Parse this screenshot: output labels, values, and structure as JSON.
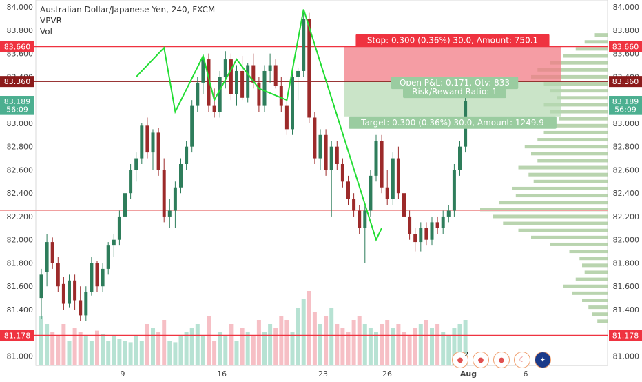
{
  "legend": {
    "symbol_title": "Australian Dollar/Japanese Yen, 240, FXCM",
    "indicator_1": "VPVR",
    "indicator_2": "Vol"
  },
  "chart_data": {
    "type": "candlestick",
    "title": "Australian Dollar/Japanese Yen, 240, FXCM",
    "ylim": [
      80.92,
      84.06
    ],
    "yticks": [
      "84.000",
      "83.800",
      "83.600",
      "83.400",
      "83.200",
      "83.000",
      "82.800",
      "82.600",
      "82.400",
      "82.200",
      "82.000",
      "81.800",
      "81.600",
      "81.400",
      "81.200",
      "81.000"
    ],
    "xticks": [
      "9",
      "16",
      "23",
      "26",
      "Aug",
      "6"
    ],
    "badges": [
      {
        "label": "83.660",
        "value": 83.66,
        "color": "#ef3340"
      },
      {
        "label": "83.360",
        "value": 83.36,
        "color": "#8b1a1a"
      },
      {
        "label": "83.189",
        "value": 83.189,
        "color": "#4caf90"
      },
      {
        "label": "56:09",
        "value": 83.12,
        "color": "#4caf90"
      },
      {
        "label": "81.178",
        "value": 81.178,
        "color": "#ef3340"
      }
    ],
    "hlines": [
      {
        "value": 83.66,
        "color": "#ef3340"
      },
      {
        "value": 83.36,
        "color": "#8b1a1a"
      },
      {
        "value": 82.25,
        "color": "#f0a0a0"
      },
      {
        "value": 81.178,
        "color": "#ef3340"
      }
    ],
    "position": {
      "entry": 83.36,
      "stop": 83.66,
      "target": 83.06,
      "stop_text": "Stop: 0.300 (0.36%) 30.0, Amount: 750.1",
      "pnl_text": "Open P&L: 0.171, Qty: 833",
      "rr_text": "Risk/Reward Ratio: 1",
      "target_text": "Target: 0.300 (0.36%) 30.0, Amount: 1249.9"
    },
    "candles": [
      {
        "o": 81.5,
        "h": 81.75,
        "l": 81.32,
        "c": 81.7
      },
      {
        "o": 81.72,
        "h": 82.05,
        "l": 81.6,
        "c": 81.98
      },
      {
        "o": 81.98,
        "h": 82.02,
        "l": 81.75,
        "c": 81.8
      },
      {
        "o": 81.8,
        "h": 81.85,
        "l": 81.55,
        "c": 81.6
      },
      {
        "o": 81.62,
        "h": 81.68,
        "l": 81.4,
        "c": 81.45
      },
      {
        "o": 81.45,
        "h": 81.7,
        "l": 81.42,
        "c": 81.65
      },
      {
        "o": 81.65,
        "h": 81.7,
        "l": 81.4,
        "c": 81.48
      },
      {
        "o": 81.48,
        "h": 81.6,
        "l": 81.3,
        "c": 81.35
      },
      {
        "o": 81.35,
        "h": 81.6,
        "l": 81.3,
        "c": 81.55
      },
      {
        "o": 81.55,
        "h": 81.85,
        "l": 81.52,
        "c": 81.8
      },
      {
        "o": 81.8,
        "h": 81.82,
        "l": 81.55,
        "c": 81.6
      },
      {
        "o": 81.6,
        "h": 81.8,
        "l": 81.55,
        "c": 81.75
      },
      {
        "o": 81.75,
        "h": 81.98,
        "l": 81.7,
        "c": 81.95
      },
      {
        "o": 81.95,
        "h": 82.05,
        "l": 81.85,
        "c": 82.0
      },
      {
        "o": 82.0,
        "h": 82.25,
        "l": 81.95,
        "c": 82.2
      },
      {
        "o": 82.2,
        "h": 82.45,
        "l": 82.15,
        "c": 82.4
      },
      {
        "o": 82.4,
        "h": 82.65,
        "l": 82.35,
        "c": 82.6
      },
      {
        "o": 82.6,
        "h": 82.75,
        "l": 82.5,
        "c": 82.7
      },
      {
        "o": 82.7,
        "h": 83.0,
        "l": 82.65,
        "c": 82.98
      },
      {
        "o": 82.98,
        "h": 83.05,
        "l": 82.7,
        "c": 82.75
      },
      {
        "o": 82.75,
        "h": 82.95,
        "l": 82.6,
        "c": 82.92
      },
      {
        "o": 82.92,
        "h": 82.96,
        "l": 82.55,
        "c": 82.6
      },
      {
        "o": 82.6,
        "h": 82.7,
        "l": 82.15,
        "c": 82.2
      },
      {
        "o": 82.2,
        "h": 82.35,
        "l": 82.1,
        "c": 82.25
      },
      {
        "o": 82.25,
        "h": 82.5,
        "l": 82.1,
        "c": 82.45
      },
      {
        "o": 82.45,
        "h": 82.7,
        "l": 82.4,
        "c": 82.65
      },
      {
        "o": 82.65,
        "h": 82.85,
        "l": 82.6,
        "c": 82.8
      },
      {
        "o": 82.8,
        "h": 83.2,
        "l": 82.75,
        "c": 83.15
      },
      {
        "o": 83.15,
        "h": 83.4,
        "l": 83.1,
        "c": 83.35
      },
      {
        "o": 83.35,
        "h": 83.58,
        "l": 83.25,
        "c": 83.55
      },
      {
        "o": 83.55,
        "h": 83.6,
        "l": 83.1,
        "c": 83.15
      },
      {
        "o": 83.15,
        "h": 83.3,
        "l": 83.05,
        "c": 83.1
      },
      {
        "o": 83.1,
        "h": 83.45,
        "l": 83.05,
        "c": 83.4
      },
      {
        "o": 83.4,
        "h": 83.62,
        "l": 83.3,
        "c": 83.55
      },
      {
        "o": 83.55,
        "h": 83.6,
        "l": 83.2,
        "c": 83.25
      },
      {
        "o": 83.25,
        "h": 83.5,
        "l": 83.15,
        "c": 83.45
      },
      {
        "o": 83.45,
        "h": 83.58,
        "l": 83.2,
        "c": 83.22
      },
      {
        "o": 83.22,
        "h": 83.52,
        "l": 83.18,
        "c": 83.5
      },
      {
        "o": 83.5,
        "h": 83.6,
        "l": 83.3,
        "c": 83.35
      },
      {
        "o": 83.35,
        "h": 83.4,
        "l": 83.1,
        "c": 83.15
      },
      {
        "o": 83.15,
        "h": 83.5,
        "l": 83.1,
        "c": 83.45
      },
      {
        "o": 83.45,
        "h": 83.6,
        "l": 83.35,
        "c": 83.5
      },
      {
        "o": 83.5,
        "h": 83.55,
        "l": 83.3,
        "c": 83.32
      },
      {
        "o": 83.32,
        "h": 83.4,
        "l": 83.1,
        "c": 83.15
      },
      {
        "o": 83.15,
        "h": 83.2,
        "l": 82.9,
        "c": 82.95
      },
      {
        "o": 82.95,
        "h": 83.45,
        "l": 82.9,
        "c": 83.4
      },
      {
        "o": 83.4,
        "h": 83.48,
        "l": 83.2,
        "c": 83.45
      },
      {
        "o": 83.45,
        "h": 83.95,
        "l": 83.4,
        "c": 83.9
      },
      {
        "o": 83.9,
        "h": 83.95,
        "l": 83.0,
        "c": 83.05
      },
      {
        "o": 83.05,
        "h": 83.1,
        "l": 82.65,
        "c": 82.7
      },
      {
        "o": 82.7,
        "h": 82.95,
        "l": 82.6,
        "c": 82.9
      },
      {
        "o": 82.9,
        "h": 82.95,
        "l": 82.55,
        "c": 82.6
      },
      {
        "o": 82.6,
        "h": 82.85,
        "l": 82.2,
        "c": 82.8
      },
      {
        "o": 82.8,
        "h": 82.85,
        "l": 82.6,
        "c": 82.65
      },
      {
        "o": 82.65,
        "h": 82.7,
        "l": 82.45,
        "c": 82.5
      },
      {
        "o": 82.5,
        "h": 82.55,
        "l": 82.3,
        "c": 82.35
      },
      {
        "o": 82.35,
        "h": 82.4,
        "l": 82.2,
        "c": 82.25
      },
      {
        "o": 82.25,
        "h": 82.3,
        "l": 82.05,
        "c": 82.1
      },
      {
        "o": 82.1,
        "h": 82.3,
        "l": 81.8,
        "c": 82.25
      },
      {
        "o": 82.25,
        "h": 82.6,
        "l": 82.2,
        "c": 82.55
      },
      {
        "o": 82.55,
        "h": 82.9,
        "l": 82.5,
        "c": 82.85
      },
      {
        "o": 82.85,
        "h": 82.9,
        "l": 82.4,
        "c": 82.45
      },
      {
        "o": 82.45,
        "h": 82.6,
        "l": 82.3,
        "c": 82.35
      },
      {
        "o": 82.35,
        "h": 82.75,
        "l": 82.3,
        "c": 82.7
      },
      {
        "o": 82.7,
        "h": 82.8,
        "l": 82.35,
        "c": 82.4
      },
      {
        "o": 82.4,
        "h": 82.45,
        "l": 82.15,
        "c": 82.2
      },
      {
        "o": 82.2,
        "h": 82.25,
        "l": 82.0,
        "c": 82.05
      },
      {
        "o": 82.05,
        "h": 82.1,
        "l": 81.9,
        "c": 81.98
      },
      {
        "o": 81.98,
        "h": 82.15,
        "l": 81.9,
        "c": 82.1
      },
      {
        "o": 82.1,
        "h": 82.15,
        "l": 81.95,
        "c": 82.0
      },
      {
        "o": 82.0,
        "h": 82.2,
        "l": 81.95,
        "c": 82.15
      },
      {
        "o": 82.15,
        "h": 82.2,
        "l": 82.05,
        "c": 82.1
      },
      {
        "o": 82.1,
        "h": 82.25,
        "l": 82.05,
        "c": 82.2
      },
      {
        "o": 82.2,
        "h": 82.3,
        "l": 82.15,
        "c": 82.25
      },
      {
        "o": 82.25,
        "h": 82.65,
        "l": 82.2,
        "c": 82.6
      },
      {
        "o": 82.6,
        "h": 82.85,
        "l": 82.55,
        "c": 82.8
      },
      {
        "o": 82.8,
        "h": 83.25,
        "l": 82.75,
        "c": 83.189
      }
    ],
    "volume_max": 1.0,
    "volumes": [
      0.6,
      0.5,
      0.4,
      0.35,
      0.5,
      0.3,
      0.45,
      0.4,
      0.35,
      0.3,
      0.42,
      0.38,
      0.3,
      0.35,
      0.32,
      0.3,
      0.28,
      0.35,
      0.3,
      0.5,
      0.45,
      0.4,
      0.55,
      0.3,
      0.28,
      0.35,
      0.4,
      0.45,
      0.5,
      0.35,
      0.6,
      0.3,
      0.4,
      0.35,
      0.5,
      0.3,
      0.45,
      0.4,
      0.35,
      0.55,
      0.4,
      0.5,
      0.45,
      0.6,
      0.55,
      0.4,
      0.7,
      0.8,
      0.9,
      0.65,
      0.5,
      0.6,
      0.7,
      0.5,
      0.45,
      0.4,
      0.55,
      0.6,
      0.5,
      0.45,
      0.4,
      0.5,
      0.55,
      0.45,
      0.5,
      0.4,
      0.35,
      0.45,
      0.5,
      0.55,
      0.45,
      0.5,
      0.4,
      0.35,
      0.45,
      0.5,
      0.55
    ],
    "profile": [
      {
        "p": 83.76,
        "v": 0.1
      },
      {
        "p": 83.7,
        "v": 0.18
      },
      {
        "p": 83.64,
        "v": 0.25
      },
      {
        "p": 83.58,
        "v": 0.35
      },
      {
        "p": 83.52,
        "v": 0.45
      },
      {
        "p": 83.46,
        "v": 0.55
      },
      {
        "p": 83.4,
        "v": 0.6
      },
      {
        "p": 83.34,
        "v": 0.5
      },
      {
        "p": 83.28,
        "v": 0.45
      },
      {
        "p": 83.22,
        "v": 0.4
      },
      {
        "p": 83.16,
        "v": 0.5
      },
      {
        "p": 83.1,
        "v": 0.45
      },
      {
        "p": 83.04,
        "v": 0.38
      },
      {
        "p": 82.98,
        "v": 0.42
      },
      {
        "p": 82.92,
        "v": 0.5
      },
      {
        "p": 82.86,
        "v": 0.55
      },
      {
        "p": 82.8,
        "v": 0.65
      },
      {
        "p": 82.74,
        "v": 0.6
      },
      {
        "p": 82.68,
        "v": 0.55
      },
      {
        "p": 82.62,
        "v": 0.7
      },
      {
        "p": 82.56,
        "v": 0.62
      },
      {
        "p": 82.5,
        "v": 0.58
      },
      {
        "p": 82.44,
        "v": 0.75
      },
      {
        "p": 82.38,
        "v": 0.72
      },
      {
        "p": 82.32,
        "v": 0.85
      },
      {
        "p": 82.26,
        "v": 1.0
      },
      {
        "p": 82.2,
        "v": 0.9
      },
      {
        "p": 82.14,
        "v": 0.82
      },
      {
        "p": 82.08,
        "v": 0.7
      },
      {
        "p": 82.02,
        "v": 0.6
      },
      {
        "p": 81.96,
        "v": 0.45
      },
      {
        "p": 81.9,
        "v": 0.3
      },
      {
        "p": 81.84,
        "v": 0.22
      },
      {
        "p": 81.78,
        "v": 0.2
      },
      {
        "p": 81.72,
        "v": 0.18
      },
      {
        "p": 81.66,
        "v": 0.25
      },
      {
        "p": 81.6,
        "v": 0.35
      },
      {
        "p": 81.54,
        "v": 0.28
      },
      {
        "p": 81.48,
        "v": 0.2
      },
      {
        "p": 81.42,
        "v": 0.15
      },
      {
        "p": 81.36,
        "v": 0.12
      },
      {
        "p": 81.3,
        "v": 0.08
      }
    ],
    "drawing_points": [
      {
        "i": 17,
        "p": 83.4
      },
      {
        "i": 22,
        "p": 83.65
      },
      {
        "i": 24,
        "p": 83.1
      },
      {
        "i": 29,
        "p": 83.58
      },
      {
        "i": 31,
        "p": 83.2
      },
      {
        "i": 35,
        "p": 83.55
      },
      {
        "i": 39,
        "p": 83.3
      },
      {
        "i": 44,
        "p": 83.2
      },
      {
        "i": 47,
        "p": 83.98
      },
      {
        "i": 60,
        "p": 82.0
      },
      {
        "i": 61,
        "p": 82.1
      }
    ]
  }
}
